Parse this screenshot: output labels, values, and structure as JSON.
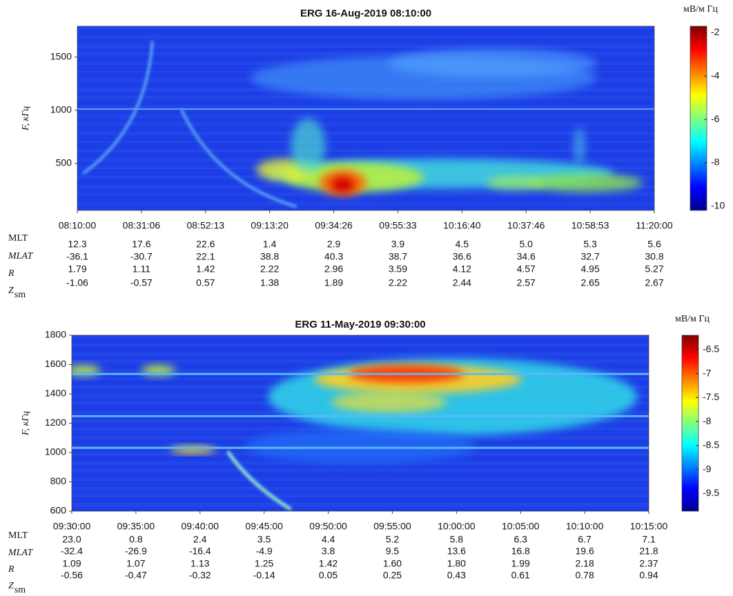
{
  "chart_data": [
    {
      "type": "spectrogram",
      "title": "ERG  16-Aug-2019 08:10:00",
      "ylabel": "F, кГц",
      "colorbar_label": "мВ/м Гц",
      "ylim": [
        58,
        1790
      ],
      "yticks": [
        500,
        1000,
        1500
      ],
      "xticks": [
        "08:10:00",
        "08:31:06",
        "08:52:13",
        "09:13:20",
        "09:34:26",
        "09:55:33",
        "10:16:40",
        "10:37:46",
        "10:58:53",
        "11:20:00"
      ],
      "clim": [
        -10.2,
        -1.7
      ],
      "cticks": [
        -2,
        -4,
        -6,
        -8,
        -10
      ],
      "colormap": "jet",
      "ephemeris": {
        "rows": [
          {
            "label": "MLT",
            "values": [
              "12.3",
              "17.6",
              "22.6",
              "1.4",
              "2.9",
              "3.9",
              "4.5",
              "5.0",
              "5.3",
              "5.6"
            ]
          },
          {
            "label": "MLAT",
            "values": [
              "-36.1",
              "-30.7",
              "22.1",
              "38.8",
              "40.3",
              "38.7",
              "36.6",
              "34.6",
              "32.7",
              "30.8"
            ]
          },
          {
            "label": "R",
            "values": [
              "1.79",
              "1.11",
              "1.42",
              "2.22",
              "2.96",
              "3.59",
              "4.12",
              "4.57",
              "4.95",
              "5.27"
            ]
          },
          {
            "label": "Z",
            "subscript": "sm",
            "values": [
              "-1.06",
              "-0.57",
              "0.57",
              "1.38",
              "1.89",
              "2.22",
              "2.44",
              "2.57",
              "2.65",
              "2.67"
            ]
          }
        ]
      }
    },
    {
      "type": "spectrogram",
      "title": "ERG  11-May-2019 09:30:00",
      "ylabel": "F, кГц",
      "colorbar_label": "мВ/м Гц",
      "ylim": [
        600,
        1800
      ],
      "yticks": [
        600,
        800,
        1000,
        1200,
        1400,
        1600,
        1800
      ],
      "xticks": [
        "09:30:00",
        "09:35:00",
        "09:40:00",
        "09:45:00",
        "09:50:00",
        "09:55:00",
        "10:00:00",
        "10:05:00",
        "10:10:00",
        "10:15:00"
      ],
      "clim": [
        -9.87,
        -6.2
      ],
      "cticks": [
        -6.5,
        -7,
        -7.5,
        -8,
        -8.5,
        -9,
        -9.5
      ],
      "colormap": "jet",
      "ephemeris": {
        "rows": [
          {
            "label": "MLT",
            "values": [
              "23.0",
              "0.8",
              "2.4",
              "3.5",
              "4.4",
              "5.2",
              "5.8",
              "6.3",
              "6.7",
              "7.1"
            ]
          },
          {
            "label": "MLAT",
            "values": [
              "-32.4",
              "-26.9",
              "-16.4",
              "-4.9",
              "3.8",
              "9.5",
              "13.6",
              "16.8",
              "19.6",
              "21.8"
            ]
          },
          {
            "label": "R",
            "values": [
              "1.09",
              "1.07",
              "1.13",
              "1.25",
              "1.42",
              "1.60",
              "1.80",
              "1.99",
              "2.18",
              "2.37"
            ]
          },
          {
            "label": "Z",
            "subscript": "sm",
            "values": [
              "-0.56",
              "-0.47",
              "-0.32",
              "-0.14",
              "0.05",
              "0.25",
              "0.43",
              "0.61",
              "0.78",
              "0.94"
            ]
          }
        ]
      }
    }
  ]
}
